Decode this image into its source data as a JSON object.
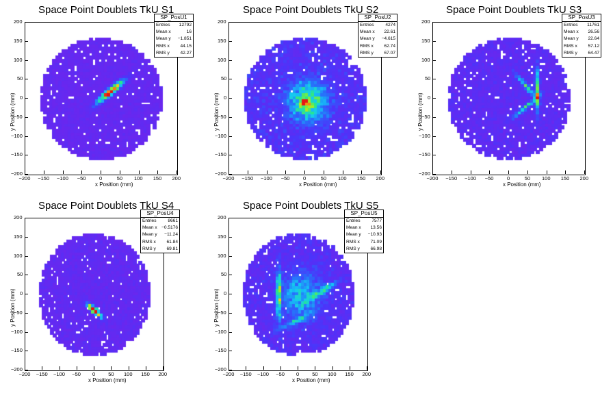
{
  "xlabel": "x Position (mm)",
  "ylabel": "y Position (mm)",
  "x_ticks": [
    "−200",
    "−150",
    "−100",
    "−50",
    "0",
    "50",
    "100",
    "150",
    "200"
  ],
  "y_ticks": [
    "200",
    "150",
    "100",
    "50",
    "0",
    "−50",
    "−100",
    "−150",
    "−200"
  ],
  "panels": [
    {
      "title": "Space Point Doublets TkU S1",
      "stats_name": "SP_PosU1",
      "stats": [
        {
          "k": "Entries",
          "v": "12792"
        },
        {
          "k": "Mean x",
          "v": "16"
        },
        {
          "k": "Mean y",
          "v": "−1.851"
        },
        {
          "k": "RMS x",
          "v": "44.15"
        },
        {
          "k": "RMS y",
          "v": "42.27"
        }
      ]
    },
    {
      "title": "Space Point Doublets TkU S2",
      "stats_name": "SP_PosU2",
      "stats": [
        {
          "k": "Entries",
          "v": "4274"
        },
        {
          "k": "Mean x",
          "v": "22.61"
        },
        {
          "k": "Mean y",
          "v": "−4.615"
        },
        {
          "k": "RMS x",
          "v": "62.74"
        },
        {
          "k": "RMS y",
          "v": "67.07"
        }
      ]
    },
    {
      "title": "Space Point Doublets TkU S3",
      "stats_name": "SP_PosU3",
      "stats": [
        {
          "k": "Entries",
          "v": "11761"
        },
        {
          "k": "Mean x",
          "v": "26.56"
        },
        {
          "k": "Mean y",
          "v": "22.64"
        },
        {
          "k": "RMS x",
          "v": "57.12"
        },
        {
          "k": "RMS y",
          "v": "64.47"
        }
      ]
    },
    {
      "title": "Space Point Doublets TkU S4",
      "stats_name": "SP_PosU4",
      "stats": [
        {
          "k": "Entries",
          "v": "8661"
        },
        {
          "k": "Mean x",
          "v": "−0.5176"
        },
        {
          "k": "Mean y",
          "v": "−11.24"
        },
        {
          "k": "RMS x",
          "v": "61.84"
        },
        {
          "k": "RMS y",
          "v": "69.81"
        }
      ]
    },
    {
      "title": "Space Point Doublets TkU S5",
      "stats_name": "SP_PosU5",
      "stats": [
        {
          "k": "Entries",
          "v": "7577"
        },
        {
          "k": "Mean x",
          "v": "13.56"
        },
        {
          "k": "Mean y",
          "v": "−10.93"
        },
        {
          "k": "RMS x",
          "v": "71.09"
        },
        {
          "k": "RMS y",
          "v": "66.98"
        }
      ]
    }
  ],
  "chart_data": [
    {
      "type": "heatmap",
      "title": "Space Point Doublets TkU S1",
      "xlabel": "x Position (mm)",
      "ylabel": "y Position (mm)",
      "xlim": [
        -200,
        200
      ],
      "ylim": [
        -200,
        200
      ],
      "entries": 12792,
      "mean_x": 16,
      "mean_y": -1.851,
      "rms_x": 44.15,
      "rms_y": 42.27,
      "detector_radius": 160,
      "hotspots": [
        {
          "x": 25,
          "y": 20,
          "sx": 30,
          "sy": 6,
          "angle": 40,
          "amp": 1.0
        }
      ],
      "background": 0.05
    },
    {
      "type": "heatmap",
      "title": "Space Point Doublets TkU S2",
      "xlabel": "x Position (mm)",
      "ylabel": "y Position (mm)",
      "xlim": [
        -200,
        200
      ],
      "ylim": [
        -200,
        200
      ],
      "entries": 4274,
      "mean_x": 22.61,
      "mean_y": -4.615,
      "rms_x": 62.74,
      "rms_y": 67.07,
      "detector_radius": 160,
      "hotspots": [
        {
          "x": 10,
          "y": -5,
          "sx": 35,
          "sy": 35,
          "angle": 0,
          "amp": 0.55
        },
        {
          "x": 0,
          "y": -8,
          "sx": 8,
          "sy": 8,
          "angle": 0,
          "amp": 0.45
        }
      ],
      "background": 0.12
    },
    {
      "type": "heatmap",
      "title": "Space Point Doublets TkU S3",
      "xlabel": "x Position (mm)",
      "ylabel": "y Position (mm)",
      "xlim": [
        -200,
        200
      ],
      "ylim": [
        -200,
        200
      ],
      "entries": 11761,
      "mean_x": 26.56,
      "mean_y": 22.64,
      "rms_x": 57.12,
      "rms_y": 64.47,
      "detector_radius": 160,
      "hotspots": [
        {
          "x": 75,
          "y": 20,
          "sx": 4,
          "sy": 40,
          "angle": 0,
          "amp": 0.6
        },
        {
          "x": 45,
          "y": 35,
          "sx": 30,
          "sy": 4,
          "angle": -50,
          "amp": 0.45
        },
        {
          "x": 45,
          "y": -20,
          "sx": 30,
          "sy": 4,
          "angle": 40,
          "amp": 0.45
        }
      ],
      "background": 0.08
    },
    {
      "type": "heatmap",
      "title": "Space Point Doublets TkU S4",
      "xlabel": "x Position (mm)",
      "ylabel": "y Position (mm)",
      "xlim": [
        -200,
        200
      ],
      "ylim": [
        -200,
        200
      ],
      "entries": 8661,
      "mean_x": -0.5176,
      "mean_y": -11.24,
      "rms_x": 61.84,
      "rms_y": 69.81,
      "detector_radius": 160,
      "hotspots": [
        {
          "x": 0,
          "y": -40,
          "sx": 18,
          "sy": 5,
          "angle": -40,
          "amp": 1.0
        }
      ],
      "background": 0.06
    },
    {
      "type": "heatmap",
      "title": "Space Point Doublets TkU S5",
      "xlabel": "x Position (mm)",
      "ylabel": "y Position (mm)",
      "xlim": [
        -200,
        200
      ],
      "ylim": [
        -200,
        200
      ],
      "entries": 7577,
      "mean_x": 13.56,
      "mean_y": -10.93,
      "rms_x": 71.09,
      "rms_y": 66.98,
      "detector_radius": 160,
      "hotspots": [
        {
          "x": -55,
          "y": 0,
          "sx": 4,
          "sy": 45,
          "angle": 0,
          "amp": 0.7
        },
        {
          "x": 10,
          "y": 0,
          "sx": 40,
          "sy": 40,
          "angle": 0,
          "amp": 0.35
        },
        {
          "x": 70,
          "y": 10,
          "sx": 35,
          "sy": 5,
          "angle": 30,
          "amp": 0.35
        },
        {
          "x": -10,
          "y": -70,
          "sx": 40,
          "sy": 6,
          "angle": 25,
          "amp": 0.3
        }
      ],
      "background": 0.1
    }
  ]
}
